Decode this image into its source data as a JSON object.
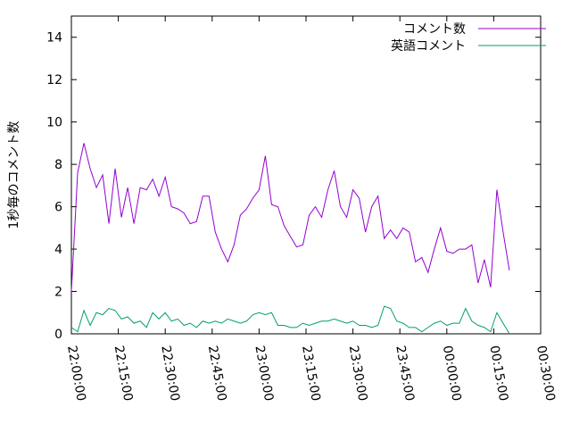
{
  "chart_data": {
    "type": "line",
    "ylabel": "1秒毎のコメント数",
    "x": [
      "22:00:00",
      "22:02:00",
      "22:04:00",
      "22:06:00",
      "22:08:00",
      "22:10:00",
      "22:12:00",
      "22:14:00",
      "22:16:00",
      "22:18:00",
      "22:20:00",
      "22:22:00",
      "22:24:00",
      "22:26:00",
      "22:28:00",
      "22:30:00",
      "22:32:00",
      "22:34:00",
      "22:36:00",
      "22:38:00",
      "22:40:00",
      "22:42:00",
      "22:44:00",
      "22:46:00",
      "22:48:00",
      "22:50:00",
      "22:52:00",
      "22:54:00",
      "22:56:00",
      "22:58:00",
      "23:00:00",
      "23:02:00",
      "23:04:00",
      "23:06:00",
      "23:08:00",
      "23:10:00",
      "23:12:00",
      "23:14:00",
      "23:16:00",
      "23:18:00",
      "23:20:00",
      "23:22:00",
      "23:24:00",
      "23:26:00",
      "23:28:00",
      "23:30:00",
      "23:32:00",
      "23:34:00",
      "23:36:00",
      "23:38:00",
      "23:40:00",
      "23:42:00",
      "23:44:00",
      "23:46:00",
      "23:48:00",
      "23:50:00",
      "23:52:00",
      "23:54:00",
      "23:56:00",
      "23:58:00",
      "00:00:00",
      "00:02:00",
      "00:04:00",
      "00:06:00",
      "00:08:00",
      "00:10:00",
      "00:12:00",
      "00:14:00",
      "00:16:00",
      "00:18:00",
      "00:20:00"
    ],
    "series": [
      {
        "name": "コメント数",
        "color": "#9400d3",
        "values": [
          2.0,
          7.6,
          9.0,
          7.8,
          6.9,
          7.5,
          5.2,
          7.8,
          5.5,
          6.9,
          5.2,
          6.9,
          6.8,
          7.3,
          6.5,
          7.4,
          6.0,
          5.9,
          5.7,
          5.2,
          5.3,
          6.5,
          6.5,
          4.8,
          4.0,
          3.4,
          4.2,
          5.6,
          5.9,
          6.4,
          6.8,
          8.4,
          6.1,
          6.0,
          5.1,
          4.6,
          4.1,
          4.2,
          5.6,
          6.0,
          5.5,
          6.8,
          7.7,
          6.0,
          5.5,
          6.8,
          6.4,
          4.8,
          6.0,
          6.5,
          4.5,
          4.9,
          4.5,
          5.0,
          4.8,
          3.4,
          3.6,
          2.9,
          4.0,
          5.0,
          3.9,
          3.8,
          4.0,
          4.0,
          4.2,
          2.4,
          3.5,
          2.2,
          6.8,
          4.8,
          3.0
        ]
      },
      {
        "name": "英語コメント",
        "color": "#009e73",
        "values": [
          0.3,
          0.1,
          1.1,
          0.4,
          1.0,
          0.9,
          1.2,
          1.1,
          0.7,
          0.8,
          0.5,
          0.6,
          0.3,
          1.0,
          0.7,
          1.0,
          0.6,
          0.7,
          0.4,
          0.5,
          0.3,
          0.6,
          0.5,
          0.6,
          0.5,
          0.7,
          0.6,
          0.5,
          0.6,
          0.9,
          1.0,
          0.9,
          1.0,
          0.4,
          0.4,
          0.3,
          0.3,
          0.5,
          0.4,
          0.5,
          0.6,
          0.6,
          0.7,
          0.6,
          0.5,
          0.6,
          0.4,
          0.4,
          0.3,
          0.4,
          1.3,
          1.2,
          0.6,
          0.5,
          0.3,
          0.3,
          0.1,
          0.3,
          0.5,
          0.6,
          0.4,
          0.5,
          0.5,
          1.2,
          0.6,
          0.4,
          0.3,
          0.1,
          1.0,
          0.5,
          0.0
        ]
      }
    ],
    "xlim": [
      "22:00:00",
      "00:30:00"
    ],
    "xticks": [
      "22:00:00",
      "22:15:00",
      "22:30:00",
      "22:45:00",
      "23:00:00",
      "23:15:00",
      "23:30:00",
      "23:45:00",
      "00:00:00",
      "00:15:00",
      "00:30:00"
    ],
    "ylim": [
      0,
      15
    ],
    "yticks": [
      0,
      2,
      4,
      6,
      8,
      10,
      12,
      14
    ],
    "grid": false,
    "legend": "top-right"
  }
}
